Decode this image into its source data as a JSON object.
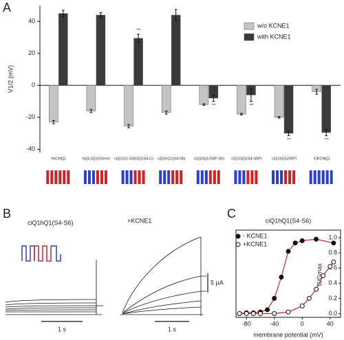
{
  "panels": [
    "A",
    "B",
    "C"
  ],
  "chart_data": [
    {
      "type": "bar",
      "y_label": "V1/2 (mV)",
      "categories": [
        "hKCNQ1",
        "hQ1ciQ1(Cterm)",
        "ciQ1(S1-S3)hQ1(S4-C)",
        "ciQ1hQ1(S4-S6)",
        "ciQ1hQ1(S5P-S6)",
        "ciQ1hQ1(S4-S5P)",
        "ciQ1hQ1(S5P)",
        "CiKCNQ1"
      ],
      "series": [
        {
          "name": "w/o KCNE1",
          "color": "#c4c4c4",
          "values": [
            -23,
            -16,
            -25.5,
            -17,
            -12,
            -18,
            -20,
            -4
          ],
          "errors": [
            1,
            1,
            1,
            1,
            0.5,
            0.5,
            0.5,
            1.5
          ]
        },
        {
          "name": "with KCNE1",
          "color": "#3a3a3a",
          "values": [
            45,
            44,
            29.5,
            44,
            -8,
            -6,
            -30,
            -29.5
          ],
          "errors": [
            2,
            1.5,
            2.5,
            3.5,
            2,
            4,
            1.5,
            2
          ]
        }
      ],
      "significance": [
        null,
        null,
        "***",
        null,
        "***",
        "***",
        "***",
        "***"
      ],
      "ylim": [
        -42,
        50
      ],
      "yticks": [
        -40,
        -20,
        0,
        20,
        40
      ],
      "legend": "upper right"
    },
    {
      "type": "traces",
      "title": "ciQ1hQ1(S4-S6)",
      "label": "+KCNE1",
      "scale_current": "5 µA",
      "scale_time": [
        "1 s",
        "1 s"
      ]
    },
    {
      "type": "scatter",
      "title": "ciQ1hQ1(S4-S6)",
      "x_label": "membrane potential (mV)",
      "y_label": "G/Gmax",
      "series": [
        {
          "name": "- KCNE1",
          "color": "#111111",
          "fill": "filled",
          "x": [
            -90,
            -80,
            -70,
            -60,
            -50,
            -40,
            -30,
            -20,
            -10,
            0,
            20,
            45
          ],
          "values": [
            0,
            0.01,
            0.01,
            0.02,
            0.05,
            0.2,
            0.48,
            0.82,
            0.93,
            0.96,
            0.98,
            0.93
          ]
        },
        {
          "name": "+KCNE1",
          "color": "#111111",
          "fill": "open",
          "x": [
            -90,
            -80,
            -70,
            -60,
            -40,
            -20,
            0,
            10,
            20,
            30,
            40,
            45
          ],
          "values": [
            0,
            0,
            0,
            0,
            0,
            0.02,
            0.1,
            0.2,
            0.32,
            0.5,
            0.62,
            0.68
          ]
        }
      ],
      "fit_color": "#d42020",
      "xlim": [
        -95,
        55
      ],
      "xticks": [
        -80,
        -40,
        0,
        40
      ],
      "ylim": [
        -0.05,
        1.1
      ],
      "yticks": [
        {
          "value": 0,
          "label": "0.0"
        },
        0.2,
        0.4,
        0.6,
        0.8,
        {
          "value": 1,
          "label": "1.0"
        }
      ],
      "legend": "upper left"
    }
  ]
}
